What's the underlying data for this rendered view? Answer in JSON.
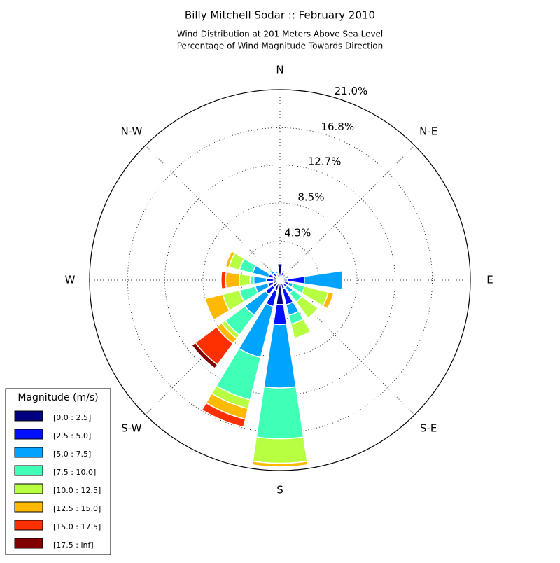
{
  "chart_data": {
    "type": "windrose",
    "title": "Billy Mitchell Sodar :: February 2010",
    "subtitle": [
      "Wind Distribution at 201 Meters Above Sea Level",
      "Percentage of Wind Magnitude Towards Direction"
    ],
    "categories": [
      "N",
      null,
      "N-E",
      null,
      "E",
      null,
      "S-E",
      null,
      "S",
      null,
      "S-W",
      null,
      "W",
      null,
      "N-W",
      null
    ],
    "rlim": [
      0,
      21.0
    ],
    "rticks": [
      {
        "value": 4.3,
        "label": "4.3%"
      },
      {
        "value": 8.5,
        "label": "8.5%"
      },
      {
        "value": 12.7,
        "label": "12.7%"
      },
      {
        "value": 16.8,
        "label": "16.8%"
      },
      {
        "value": 21.0,
        "label": "21.0%"
      }
    ],
    "grid": true,
    "legend_title": "Magnitude (m/s)",
    "legend_position": "lower left",
    "series": [
      {
        "name": "[0.0 : 2.5]",
        "color": "#000080",
        "values": [
          1.8,
          0.5,
          0.3,
          0.4,
          0.8,
          0.5,
          0.5,
          1.0,
          2.7,
          1.2,
          1.0,
          0.8,
          0.7,
          0.8,
          0.5,
          0.6
        ]
      },
      {
        "name": "[2.5 : 5.0]",
        "color": "#0010ff",
        "values": [
          0.2,
          0.4,
          0.2,
          0.2,
          1.9,
          0.5,
          0.5,
          1.8,
          2.2,
          1.8,
          1.0,
          0.6,
          0.8,
          0.5,
          0.5,
          0.2
        ]
      },
      {
        "name": "[5.0 : 7.5]",
        "color": "#00a4ff",
        "values": [
          0,
          0.2,
          0,
          0.4,
          4.2,
          0.5,
          0.8,
          1.2,
          7.0,
          5.8,
          2.8,
          1.4,
          1.4,
          1.8,
          0.3,
          0.2
        ]
      },
      {
        "name": "[7.5 : 10.0]",
        "color": "#40ffb7",
        "values": [
          0,
          0,
          0,
          0,
          0,
          1.3,
          1.2,
          1.0,
          5.6,
          4.8,
          2.7,
          1.8,
          0.4,
          1.5,
          0.2,
          0
        ]
      },
      {
        "name": "[10.0 : 12.5]",
        "color": "#b7ff40",
        "values": [
          0,
          0,
          0,
          0,
          0,
          2.7,
          2.2,
          1.6,
          2.7,
          1.0,
          0.5,
          1.9,
          1.2,
          1.2,
          0.2,
          0
        ]
      },
      {
        "name": "[12.5 : 15.0]",
        "color": "#ffb900",
        "values": [
          0,
          0,
          0,
          0,
          0,
          0.6,
          0,
          0,
          0.4,
          1.2,
          0.7,
          2.0,
          1.5,
          0.4,
          0.1,
          0
        ]
      },
      {
        "name": "[15.0 : 17.5]",
        "color": "#ff3000",
        "values": [
          0,
          0,
          0,
          0,
          0,
          0,
          0,
          0,
          0,
          0.9,
          2.9,
          0,
          0.5,
          0,
          0,
          0
        ]
      },
      {
        "name": "[17.5 : inf]",
        "color": "#800000",
        "values": [
          0,
          0,
          0,
          0,
          0,
          0,
          0,
          0,
          0,
          0,
          0.5,
          0,
          0,
          0,
          0,
          0
        ]
      }
    ]
  }
}
